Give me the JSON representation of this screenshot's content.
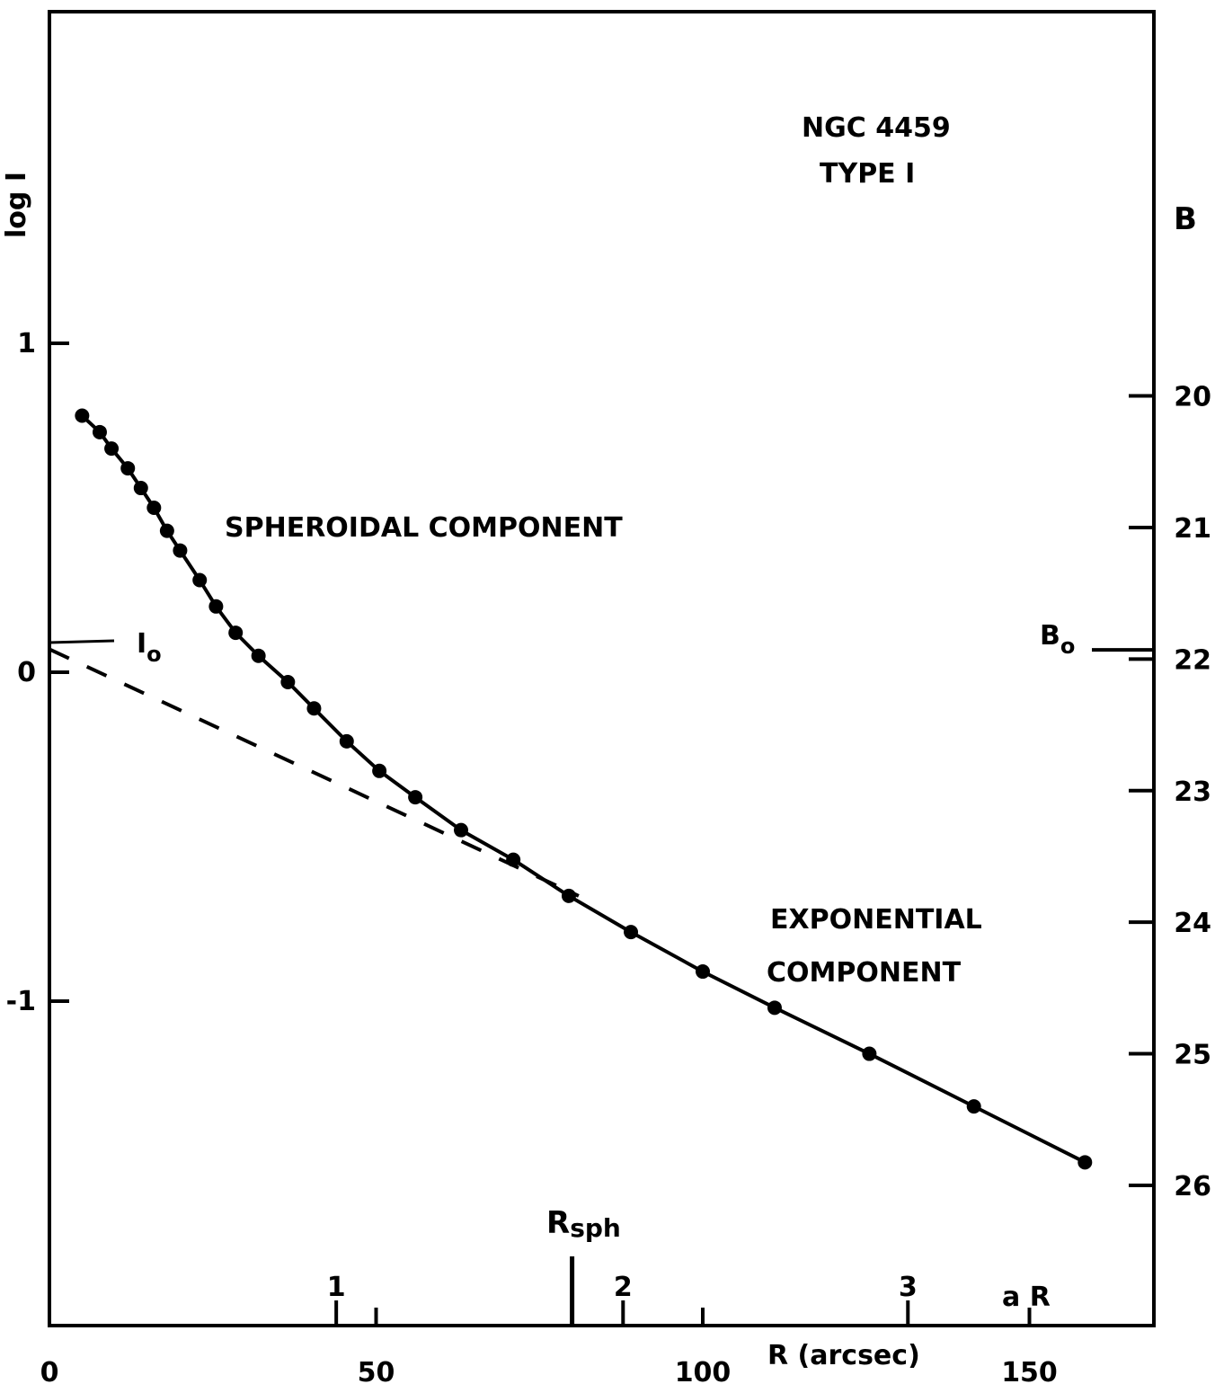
{
  "chart_data": {
    "type": "line",
    "xlabel": "R (arcsec)",
    "ylabel_left": "log I",
    "ylabel_right": "B",
    "xlim": [
      0,
      170
    ],
    "ylim": [
      -2,
      2
    ],
    "x_ticks": [
      0,
      50,
      100,
      150
    ],
    "y_ticks": [
      1,
      0,
      -1
    ],
    "right_ticks": [
      20,
      21,
      22,
      23,
      24,
      25,
      26
    ],
    "right_axis_mapping": {
      "B_at_logI_zero": 22.1,
      "B_per_logI": -2.5
    },
    "aR_ticks": [
      {
        "label": "1",
        "x": 43.9
      },
      {
        "label": "2",
        "x": 87.8
      },
      {
        "label": "3",
        "x": 131.4
      }
    ],
    "aR_label": "a R",
    "rsph": {
      "label": "Rsph",
      "label_main": "R",
      "label_sub": "sph",
      "x": 80
    },
    "annotations": {
      "galaxy": "NGC 4459",
      "type": "TYPE I",
      "spheroidal": "SPHEROIDAL COMPONENT",
      "exponential_line1": "EXPONENTIAL",
      "exponential_line2": "COMPONENT",
      "i0_main": "I",
      "i0_sub": "o",
      "b0_main": "B",
      "b0_sub": "o"
    },
    "series": [
      {
        "style": "solid-with-points",
        "x": [
          5,
          7.7,
          9.5,
          12,
          14,
          16,
          18,
          20,
          23,
          25.5,
          28.5,
          32,
          36.5,
          40.5,
          45.5,
          50.5,
          56,
          63,
          71,
          79.5,
          89,
          100,
          111,
          125.5,
          141.5,
          158.5
        ],
        "y": [
          0.78,
          0.73,
          0.68,
          0.62,
          0.56,
          0.5,
          0.43,
          0.37,
          0.28,
          0.2,
          0.12,
          0.05,
          -0.03,
          -0.11,
          -0.21,
          -0.3,
          -0.38,
          -0.48,
          -0.57,
          -0.68,
          -0.79,
          -0.91,
          -1.02,
          -1.16,
          -1.32,
          -1.49
        ]
      },
      {
        "style": "dashed",
        "x": [
          0,
          81
        ],
        "y": [
          0.07,
          -0.68
        ]
      }
    ]
  }
}
